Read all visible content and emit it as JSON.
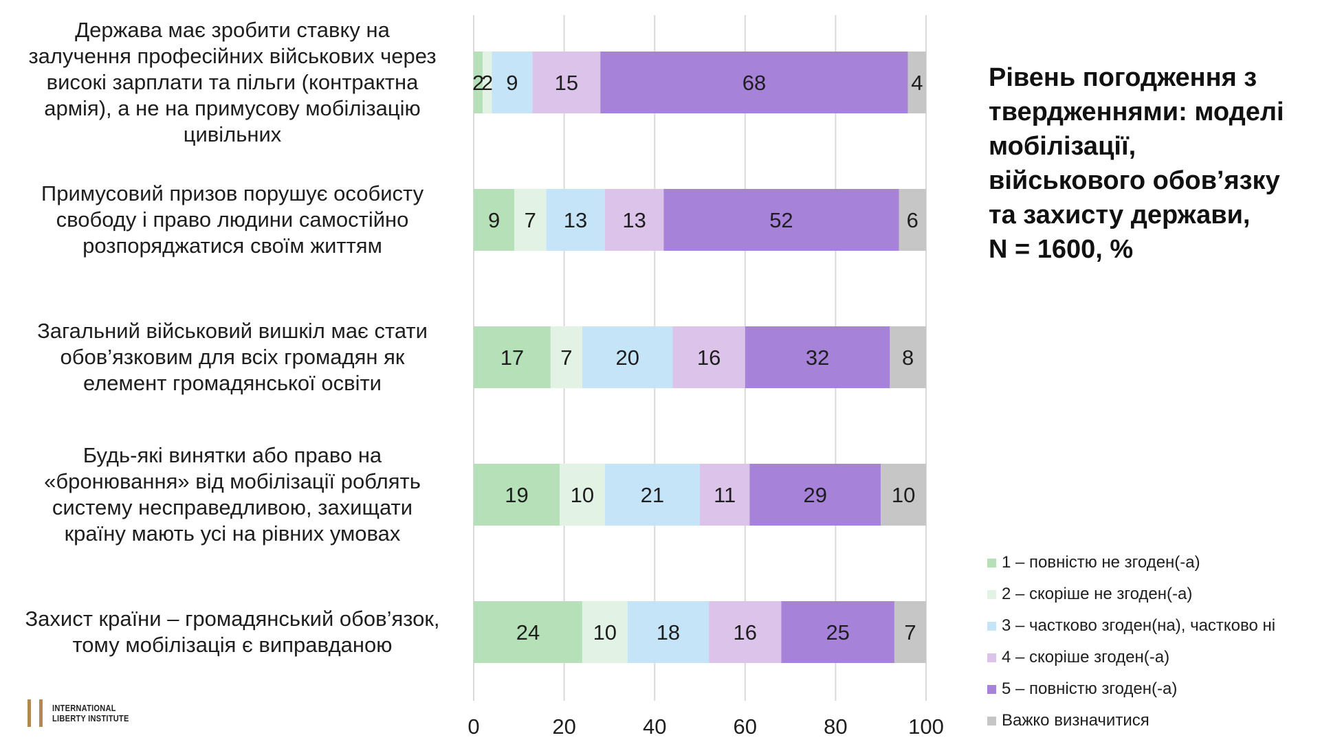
{
  "chart_data": {
    "type": "bar",
    "orientation": "horizontal",
    "stacked": true,
    "title": "Рівень погодження з твердженнями: моделі мобілізації, військового обов’язку та захисту держави, N = 1600, %",
    "title_lines": [
      "Рівень погодження з",
      "твердженнями: моделі",
      "мобілізації,",
      "військового обов’язку",
      "та захисту держави,",
      "N = 1600, %"
    ],
    "categories": [
      "Держава має зробити ставку на\nзалучення професійних військових через\nвисокі зарплати та пільги (контрактна\nармія), а не на примусову мобілізацію\nцивільних",
      "Примусовий призов порушує особисту\nсвободу і право людини самостійно\nрозпоряджатися своїм життям",
      "Загальний військовий вишкіл має стати\nобов’язковим для всіх громадян як\nелемент громадянської освіти",
      "Будь-які винятки або право на\n«бронювання» від мобілізації роблять\nсистему несправедливою, захищати\nкраїну мають усі на рівних умовах",
      "Захист країни – громадянський обов’язок,\nтому мобілізація є виправданою"
    ],
    "series": [
      {
        "name": "1 – повністю не згоден(-а)",
        "color": "#b5e0b8",
        "values": [
          2,
          9,
          17,
          19,
          24
        ]
      },
      {
        "name": "2 – скоріше не згоден(-а)",
        "color": "#e2f2e4",
        "values": [
          2,
          7,
          7,
          10,
          10
        ]
      },
      {
        "name": "3 – частково згоден(на), частково ні",
        "color": "#c5e4f8",
        "values": [
          9,
          13,
          20,
          21,
          18
        ]
      },
      {
        "name": "4 – скоріше згоден(-а)",
        "color": "#dcc3e9",
        "values": [
          15,
          13,
          16,
          11,
          16
        ]
      },
      {
        "name": "5 – повністю згоден(-а)",
        "color": "#a682d9",
        "values": [
          68,
          52,
          32,
          29,
          25
        ]
      },
      {
        "name": "Важко визначитися",
        "color": "#c6c6c6",
        "values": [
          4,
          6,
          8,
          10,
          7
        ]
      }
    ],
    "xlim": [
      0,
      100
    ],
    "xticks": [
      0,
      20,
      40,
      60,
      80,
      100
    ],
    "grid": true,
    "legend_position": "right-bottom"
  },
  "logo": {
    "line1": "INTERNATIONAL",
    "line2": "LIBERTY INSTITUTE"
  }
}
